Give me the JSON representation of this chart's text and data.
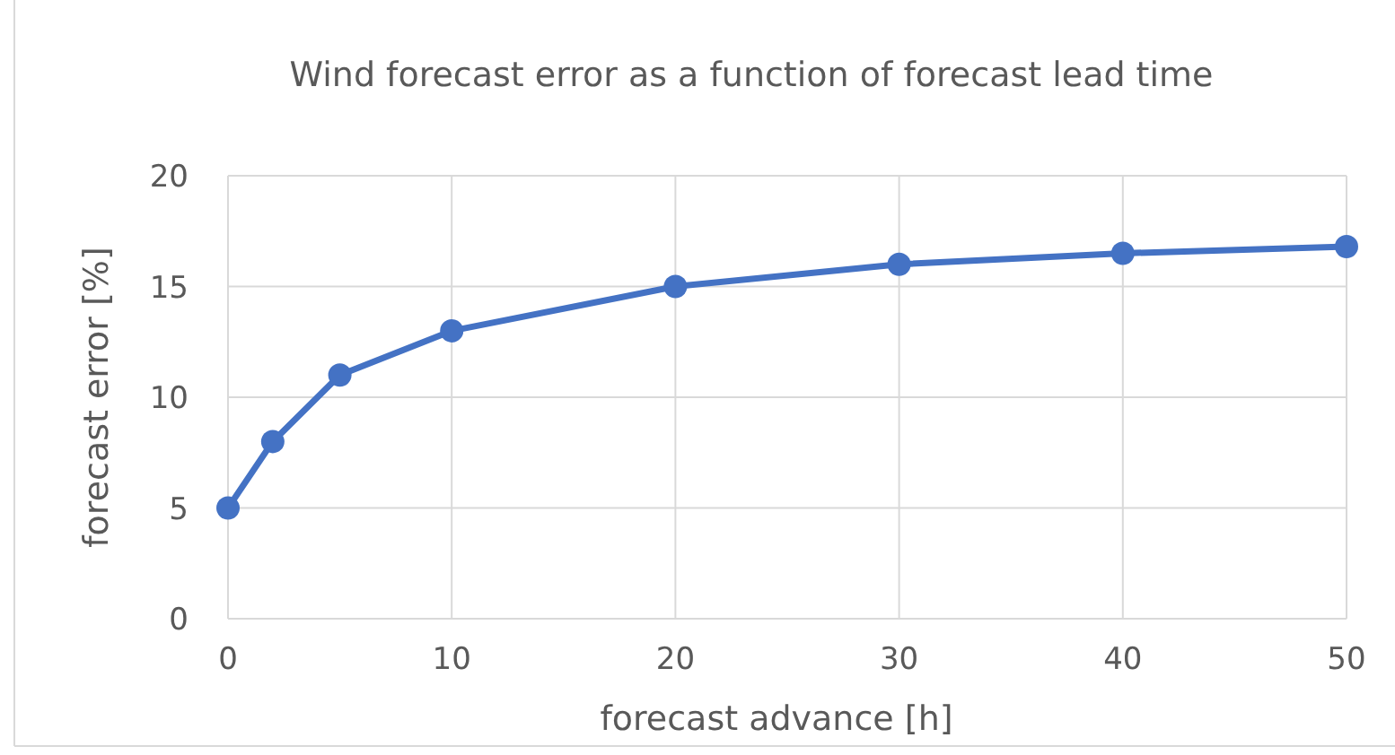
{
  "chart_data": {
    "type": "line",
    "title": "Wind forecast error as a function of forecast lead time",
    "xlabel": "forecast advance [h]",
    "ylabel": "forecast error [%]",
    "x": [
      0,
      2,
      5,
      10,
      20,
      30,
      40,
      50
    ],
    "series": [
      {
        "color": "#4472c4",
        "values": [
          5,
          8,
          11,
          13,
          15,
          16,
          16.5,
          16.8
        ]
      }
    ],
    "xlim": [
      0,
      50
    ],
    "xticks": [
      0,
      10,
      20,
      30,
      40,
      50
    ],
    "ylim": [
      0,
      20
    ],
    "yticks": [
      0,
      5,
      10,
      15,
      20
    ],
    "grid": true,
    "marker": "circle",
    "line_style": "solid"
  }
}
